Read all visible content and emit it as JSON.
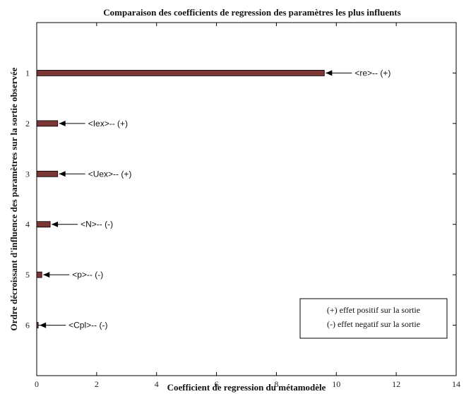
{
  "chart_data": {
    "type": "bar",
    "orientation": "horizontal",
    "title": "Comparaison des coefficients de regression des paramètres les plus influents",
    "xlabel": "Coefficient de regression du métamodèle",
    "ylabel": "Ordre décroissant d'influence des paramètres sur la sortie observée",
    "xlim": [
      0,
      14
    ],
    "ylim": [
      0,
      7
    ],
    "x_ticks": [
      "0",
      "2",
      "4",
      "6",
      "8",
      "10",
      "12",
      "14"
    ],
    "categories": [
      "1",
      "2",
      "3",
      "4",
      "5",
      "6"
    ],
    "values": [
      9.6,
      0.7,
      0.7,
      0.45,
      0.17,
      0.05
    ],
    "annotations": [
      "<re>-- (+)",
      "<Iex>-- (+)",
      "<Uex>-- (+)",
      "<N>-- (-)",
      "<p>-- (-)",
      "<Cpl>-- (-)"
    ],
    "bar_color": "#7a3535",
    "legend": {
      "position": "bottom-right",
      "entries": [
        "(+) effet positif sur la sortie",
        "(-) effet negatif sur la sortie"
      ]
    }
  }
}
